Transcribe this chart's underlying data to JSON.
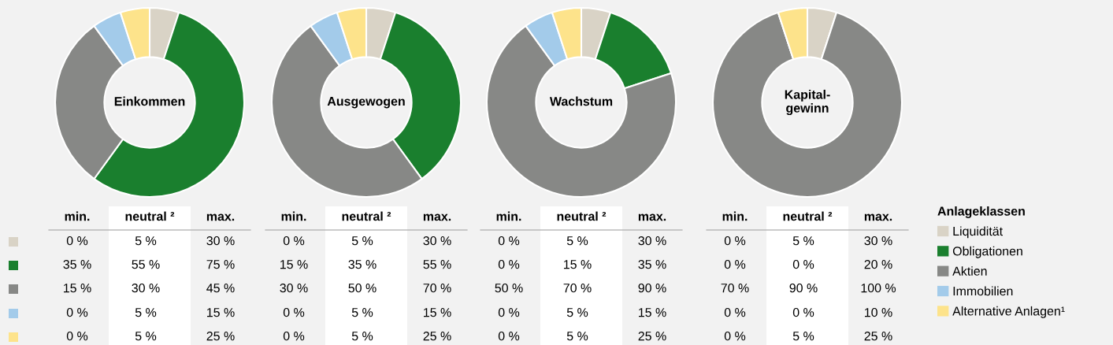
{
  "chart_data": [
    {
      "type": "donut",
      "title": "Einkommen",
      "categories": [
        null,
        null,
        null,
        null,
        null
      ],
      "values": [
        5,
        55,
        30,
        5,
        5
      ],
      "colors": [
        "#d9d3c6",
        "#1a7f2e",
        "#878886",
        "#a3cbea",
        "#fde38b"
      ],
      "annotations": [
        "min.",
        "neutral ²",
        "max.",
        "0 %",
        "5 %",
        "30 %",
        "35 %",
        "55 %",
        "75 %",
        "15 %",
        "30 %",
        "45 %",
        "0 %",
        "5 %",
        "15 %",
        "0 %",
        "5 %",
        "25 %"
      ]
    },
    {
      "type": "donut",
      "title": "Ausgewogen",
      "categories": [
        null,
        null,
        null,
        null,
        null
      ],
      "values": [
        5,
        35,
        50,
        5,
        5
      ],
      "colors": [
        "#d9d3c6",
        "#1a7f2e",
        "#878886",
        "#a3cbea",
        "#fde38b"
      ],
      "annotations": [
        "min.",
        "neutral ²",
        "max.",
        "0 %",
        "5 %",
        "30 %",
        "15 %",
        "35 %",
        "55 %",
        "30 %",
        "50 %",
        "70 %",
        "0 %",
        "5 %",
        "15 %",
        "0 %",
        "5 %",
        "25 %"
      ]
    },
    {
      "type": "donut",
      "title": "Wachstum",
      "categories": [
        null,
        null,
        null,
        null,
        null
      ],
      "values": [
        5,
        15,
        70,
        5,
        5
      ],
      "colors": [
        "#d9d3c6",
        "#1a7f2e",
        "#878886",
        "#a3cbea",
        "#fde38b"
      ],
      "annotations": [
        "min.",
        "neutral ²",
        "max.",
        "0 %",
        "5 %",
        "30 %",
        "0 %",
        "15 %",
        "35 %",
        "50 %",
        "70 %",
        "90 %",
        "0 %",
        "5 %",
        "15 %",
        "0 %",
        "5 %",
        "25 %"
      ]
    },
    {
      "type": "donut",
      "title": "Kapital-\ngewinn",
      "categories": [
        "Liquidität",
        "Obligationen",
        "Aktien",
        "Immobilien",
        "Alternative Anlagen¹"
      ],
      "values": [
        5,
        0,
        90,
        0,
        5
      ],
      "colors": [
        "#d9d3c6",
        "#1a7f2e",
        "#878886",
        "#a3cbea",
        "#fde38b"
      ],
      "annotations": [
        "min.",
        "neutral ²",
        "max.",
        "0 %",
        "5 %",
        "30 %",
        "0 %",
        "0 %",
        "20 %",
        "70 %",
        "90 %",
        "100 %",
        "0 %",
        "0 %",
        "10 %",
        "0 %",
        "5 %",
        "25 %"
      ],
      "legend": "right",
      "legend_title": "Anlageklassen"
    }
  ]
}
